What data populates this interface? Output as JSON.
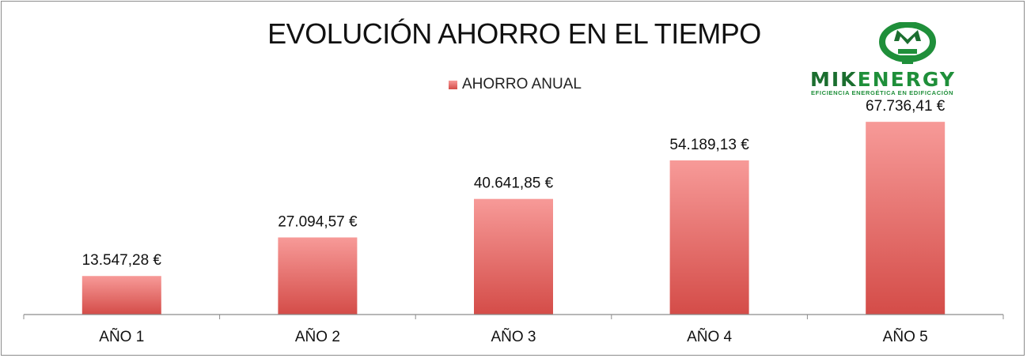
{
  "chart_data": {
    "type": "bar",
    "title": "EVOLUCIÓN AHORRO EN EL TIEMPO",
    "categories": [
      "AÑO 1",
      "AÑO 2",
      "AÑO 3",
      "AÑO 4",
      "AÑO 5"
    ],
    "series": [
      {
        "name": "AHORRO ANUAL",
        "values": [
          13547.28,
          27094.57,
          40641.85,
          54189.13,
          67736.41
        ],
        "labels": [
          "13.547,28 €",
          "27.094,57 €",
          "40.641,85 €",
          "54.189,13 €",
          "67.736,41 €"
        ]
      }
    ],
    "ylim": [
      0,
      80000
    ],
    "legend": "top",
    "grid": false,
    "bar_color_top": "#f79a98",
    "bar_color_bottom": "#d44c48"
  },
  "logo": {
    "word_left": "MIK",
    "word_right": "ENERGY",
    "tagline": "EFICIENCIA ENERGÉTICA EN EDIFICACIÓN",
    "color": "#1f8f3a"
  }
}
